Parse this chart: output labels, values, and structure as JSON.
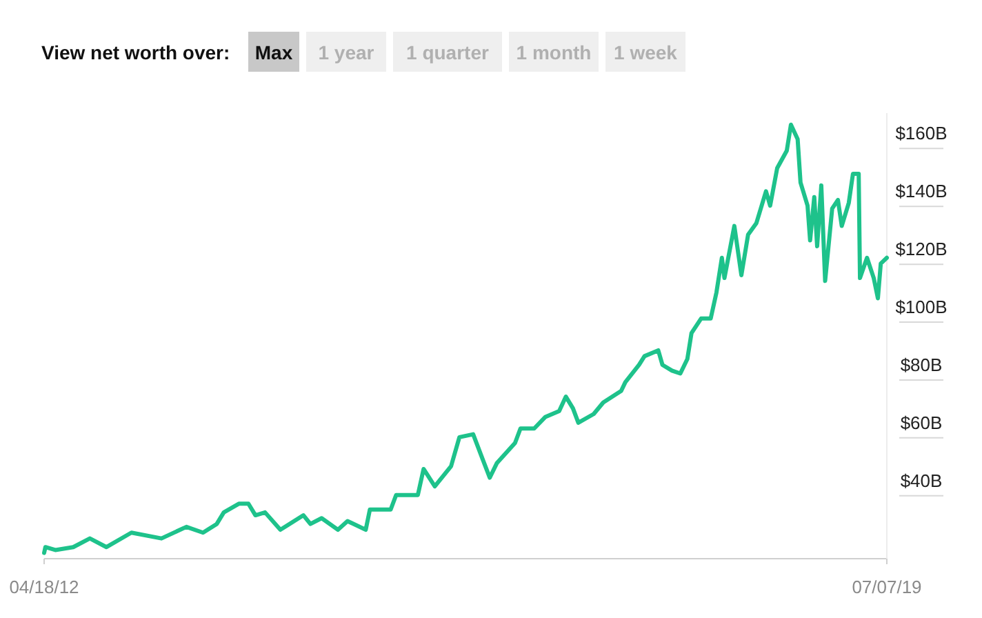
{
  "chart_data": {
    "type": "line",
    "title": "View net worth over:",
    "annotations": [
      "Max",
      "1 year",
      "1 quarter",
      "1 month",
      "1 week"
    ],
    "x": [
      "2012-04-18",
      "2012-04-22",
      "2012-05-23",
      "2012-07-18",
      "2012-09-08",
      "2012-10-30",
      "2013-01-16",
      "2013-04-20",
      "2013-07-07",
      "2013-08-28",
      "2013-10-10",
      "2013-11-01",
      "2013-12-18",
      "2014-01-17",
      "2014-02-08",
      "2014-03-10",
      "2014-04-27",
      "2014-07-08",
      "2014-07-30",
      "2014-09-03",
      "2014-10-24",
      "2014-11-23",
      "2015-01-19",
      "2015-02-01",
      "2015-04-07",
      "2015-04-24",
      "2015-07-01",
      "2015-07-19",
      "2015-08-23",
      "2015-10-13",
      "2015-11-08",
      "2015-12-21",
      "2016-01-21",
      "2016-02-11",
      "2016-03-04",
      "2016-04-30",
      "2016-05-17",
      "2016-06-29",
      "2016-08-03",
      "2016-09-15",
      "2016-10-06",
      "2016-10-28",
      "2016-11-14",
      "2017-01-01",
      "2017-01-31",
      "2017-03-28",
      "2017-04-10",
      "2017-05-23",
      "2017-06-09",
      "2017-07-22",
      "2017-08-04",
      "2017-09-03",
      "2017-09-29",
      "2017-10-21",
      "2017-11-03",
      "2017-12-03",
      "2018-01-02",
      "2018-01-20",
      "2018-02-06",
      "2018-02-14",
      "2018-03-17",
      "2018-04-08",
      "2018-04-29",
      "2018-05-25",
      "2018-06-24",
      "2018-07-07",
      "2018-07-29",
      "2018-08-28",
      "2018-09-10",
      "2018-10-01",
      "2018-10-10",
      "2018-11-01",
      "2018-11-09",
      "2018-11-22",
      "2018-12-01",
      "2018-12-14",
      "2018-12-26",
      "2019-01-17",
      "2019-02-04",
      "2019-02-16",
      "2019-03-10",
      "2019-03-23",
      "2019-04-10",
      "2019-04-14",
      "2019-05-06",
      "2019-05-27",
      "2019-06-09",
      "2019-06-18",
      "2019-07-07"
    ],
    "series": [
      {
        "color": "#1ec28b",
        "values": [
          15,
          17,
          16,
          17,
          20,
          17,
          22,
          20,
          24,
          22,
          25,
          29,
          32,
          32,
          28,
          29,
          23,
          28,
          25,
          27,
          23,
          26,
          23,
          30,
          30,
          35,
          35,
          44,
          38,
          45,
          55,
          56,
          47,
          41,
          46,
          53,
          58,
          58,
          62,
          64,
          69,
          65,
          60,
          63,
          67,
          71,
          74,
          80,
          83,
          85,
          80,
          78,
          77,
          82,
          91,
          96,
          96,
          105,
          117,
          110,
          128,
          111,
          125,
          129,
          140,
          135,
          148,
          154,
          163,
          158,
          143,
          135,
          123,
          138,
          121,
          142,
          109,
          134,
          137,
          128,
          136,
          146,
          146,
          110,
          117,
          110,
          103,
          115,
          117
        ]
      }
    ],
    "xlim": [
      "2012-04-18",
      "2019-07-07"
    ],
    "xticks": [
      {
        "value": "2012-04-18",
        "label": "04/18/12"
      },
      {
        "value": "2019-07-07",
        "label": "07/07/19"
      }
    ],
    "ylim": [
      13,
      167
    ],
    "yticks": [
      {
        "value": 40,
        "label": "$40B"
      },
      {
        "value": 60,
        "label": "$60B"
      },
      {
        "value": 80,
        "label": "$80B"
      },
      {
        "value": 100,
        "label": "$100B"
      },
      {
        "value": 120,
        "label": "$120B"
      },
      {
        "value": 140,
        "label": "$140B"
      },
      {
        "value": 160,
        "label": "$160B"
      }
    ],
    "line_style": "solid",
    "marker": "none"
  }
}
